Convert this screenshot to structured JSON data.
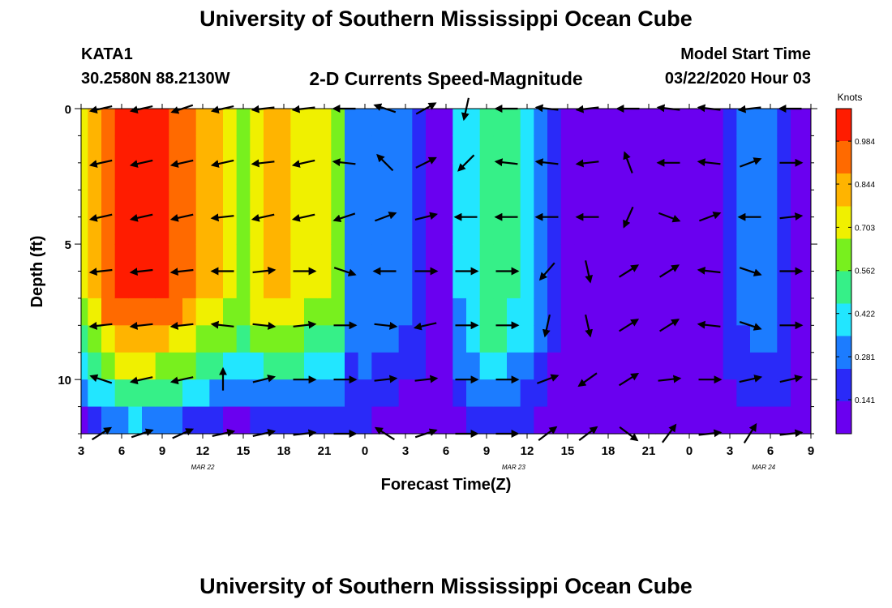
{
  "header": {
    "title": "University of Southern Mississippi Ocean Cube",
    "station_id": "KATA1",
    "station_coords": "30.2580N 88.2130W",
    "subtitle": "2-D Currents Speed-Magnitude",
    "model_label": "Model Start Time",
    "model_time": "03/22/2020 Hour 03"
  },
  "footer": {
    "title": "University of Southern Mississippi Ocean Cube"
  },
  "chart_data": {
    "type": "heatmap",
    "title": "2-D Currents Speed-Magnitude",
    "xlabel": "Forecast Time(Z)",
    "ylabel": "Depth (ft)",
    "x_tick_labels": [
      "3",
      "6",
      "9",
      "12",
      "15",
      "18",
      "21",
      "0",
      "3",
      "6",
      "9",
      "12",
      "15",
      "18",
      "21",
      "0",
      "3",
      "6",
      "9"
    ],
    "x_hours": [
      0,
      54
    ],
    "date_labels": [
      {
        "text": "MAR  22",
        "hour": 9
      },
      {
        "text": "MAR  23",
        "hour": 32
      },
      {
        "text": "MAR  24",
        "hour": 50.5
      }
    ],
    "y_ticks": [
      0,
      5,
      10
    ],
    "ylim": [
      0,
      12
    ],
    "y_inverted": true,
    "colorbar": {
      "label": "Knots",
      "tick_labels": [
        "0.984",
        "0.844",
        "0.703",
        "0.562",
        "0.422",
        "0.281",
        "0.141"
      ],
      "ticks": [
        0.984,
        0.844,
        0.703,
        0.562,
        0.422,
        0.281,
        0.141
      ],
      "range": [
        0.03,
        1.09
      ],
      "colors": [
        "#6a00f0",
        "#2a2af8",
        "#1c7cff",
        "#22e6ff",
        "#36f088",
        "#78f01e",
        "#f0f000",
        "#ffb400",
        "#ff6a00",
        "#ff1c00"
      ]
    },
    "depths": [
      0,
      1,
      2,
      3,
      4,
      5,
      6,
      7,
      8,
      9,
      10,
      11,
      12
    ],
    "speed_profile": {
      "hours": [
        0,
        1,
        2,
        3,
        4,
        5,
        6,
        7,
        8,
        9,
        10,
        11,
        12,
        13,
        14,
        15,
        16,
        17,
        18,
        19,
        20,
        21,
        22,
        23,
        24,
        25,
        26,
        27,
        28,
        29,
        30,
        31,
        32,
        33,
        34,
        35,
        36,
        37,
        38,
        39,
        40,
        41,
        42,
        43,
        44,
        45,
        46,
        47,
        48,
        49,
        50,
        51,
        52,
        53,
        54
      ],
      "surface": [
        0.7,
        0.82,
        0.96,
        1.0,
        1.0,
        1.0,
        1.0,
        0.95,
        0.88,
        0.82,
        0.78,
        0.72,
        0.62,
        0.74,
        0.8,
        0.8,
        0.75,
        0.7,
        0.7,
        0.66,
        0.3,
        0.34,
        0.3,
        0.32,
        0.26,
        0.22,
        0.12,
        0.08,
        0.36,
        0.45,
        0.55,
        0.55,
        0.48,
        0.42,
        0.3,
        0.18,
        0.1,
        0.08,
        0.06,
        0.06,
        0.06,
        0.06,
        0.06,
        0.06,
        0.06,
        0.06,
        0.05,
        0.05,
        0.2,
        0.28,
        0.32,
        0.3,
        0.24,
        0.06,
        0.05
      ],
      "bottom": [
        0.04,
        0.1,
        0.14,
        0.22,
        0.28,
        0.24,
        0.2,
        0.18,
        0.14,
        0.1,
        0.06,
        0.04,
        0.04,
        0.05,
        0.05,
        0.06,
        0.06,
        0.07,
        0.08,
        0.1,
        0.12,
        0.12,
        0.1,
        0.08,
        0.06,
        0.06,
        0.05,
        0.05,
        0.1,
        0.14,
        0.16,
        0.16,
        0.14,
        0.12,
        0.1,
        0.07,
        0.06,
        0.05,
        0.05,
        0.05,
        0.05,
        0.05,
        0.05,
        0.05,
        0.05,
        0.05,
        0.05,
        0.05,
        0.08,
        0.1,
        0.1,
        0.1,
        0.08,
        0.05,
        0.05
      ]
    },
    "vector_hours": [
      1.5,
      4.5,
      7.5,
      10.5,
      13.5,
      16.5,
      19.5,
      22.5,
      25.5,
      28.5,
      31.5,
      34.5,
      37.5,
      40.5,
      43.5,
      46.5,
      49.5,
      52.5
    ],
    "vector_depths": [
      0,
      2,
      4,
      6,
      8,
      10,
      12
    ],
    "vector_units": "knots",
    "vectors_u": [
      [
        -0.9,
        -0.9,
        -0.9,
        -0.9,
        -0.9,
        -0.9,
        -0.9,
        -0.9,
        0.9,
        -0.2,
        -0.9,
        -0.9,
        -0.9,
        -0.9,
        -0.9,
        -0.9,
        -0.9,
        -0.9
      ],
      [
        -0.9,
        -0.9,
        -0.9,
        -0.9,
        -0.9,
        -0.9,
        -0.9,
        -0.7,
        0.8,
        -0.7,
        -0.9,
        -0.9,
        -0.9,
        -0.3,
        -0.9,
        -0.9,
        0.8,
        0.9
      ],
      [
        -0.9,
        -0.9,
        -0.9,
        -0.9,
        -0.9,
        -0.9,
        -0.9,
        0.8,
        0.8,
        -0.9,
        -0.9,
        -0.9,
        -0.9,
        -0.4,
        0.8,
        0.8,
        -0.9,
        0.9
      ],
      [
        -0.9,
        -0.9,
        -0.9,
        -0.9,
        0.9,
        0.9,
        0.9,
        -0.9,
        0.8,
        0.9,
        0.9,
        -0.6,
        0.2,
        0.8,
        0.8,
        -0.9,
        0.9,
        0.9
      ],
      [
        -0.9,
        -0.9,
        -0.9,
        -0.9,
        0.9,
        0.9,
        0.9,
        0.9,
        -0.9,
        0.9,
        0.9,
        -0.2,
        0.2,
        0.8,
        0.8,
        -0.9,
        0.9,
        0.9
      ],
      [
        -0.9,
        -0.9,
        -0.9,
        0.0,
        0.8,
        0.9,
        0.9,
        0.9,
        0.9,
        0.9,
        0.9,
        0.8,
        -0.7,
        0.8,
        0.9,
        0.9,
        0.9,
        0.9
      ],
      [
        0.8,
        0.9,
        0.9,
        0.9,
        0.9,
        0.9,
        0.9,
        -0.8,
        0.9,
        0.9,
        0.9,
        0.8,
        0.8,
        0.8,
        0.6,
        0.9,
        0.5,
        0.9
      ]
    ],
    "vectors_v": [
      [
        -0.2,
        -0.2,
        -0.3,
        -0.2,
        -0.1,
        -0.1,
        0.0,
        0.3,
        0.5,
        -0.9,
        0.0,
        0.1,
        -0.1,
        0.0,
        0.1,
        0.1,
        -0.1,
        0.0
      ],
      [
        -0.2,
        -0.2,
        -0.2,
        -0.2,
        -0.1,
        -0.2,
        0.1,
        0.7,
        0.4,
        -0.7,
        0.1,
        0.1,
        -0.1,
        0.8,
        0.0,
        0.1,
        0.3,
        0.0
      ],
      [
        -0.2,
        -0.2,
        -0.2,
        -0.1,
        -0.2,
        -0.2,
        -0.3,
        0.3,
        0.2,
        0.0,
        0.0,
        0.0,
        0.0,
        -0.9,
        -0.3,
        0.3,
        0.0,
        0.1
      ],
      [
        -0.1,
        -0.1,
        -0.1,
        0.0,
        0.1,
        0.0,
        -0.3,
        0.0,
        0.0,
        0.0,
        0.0,
        -0.7,
        -0.9,
        0.5,
        0.5,
        0.1,
        -0.3,
        0.0
      ],
      [
        -0.1,
        -0.1,
        -0.1,
        0.1,
        -0.1,
        0.1,
        0.0,
        -0.1,
        -0.2,
        0.0,
        0.0,
        -0.9,
        -0.9,
        0.5,
        0.5,
        0.1,
        -0.3,
        0.0
      ],
      [
        0.3,
        -0.2,
        -0.2,
        0.9,
        0.2,
        0.0,
        0.0,
        0.1,
        0.1,
        0.0,
        0.0,
        0.3,
        -0.5,
        0.5,
        0.1,
        0.0,
        0.2,
        0.2
      ],
      [
        0.5,
        0.3,
        0.4,
        0.2,
        0.2,
        0.1,
        0.0,
        0.5,
        0.3,
        0.0,
        0.0,
        0.6,
        0.6,
        -0.6,
        0.8,
        0.1,
        0.8,
        0.1
      ]
    ]
  }
}
